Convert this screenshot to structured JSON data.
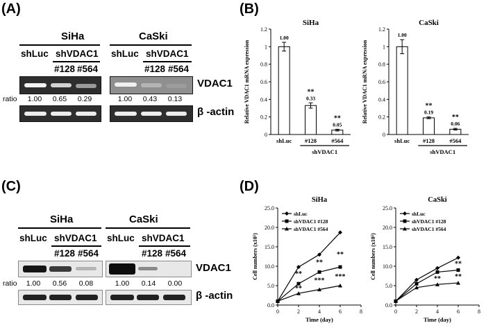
{
  "panels": {
    "a": {
      "label": "(A)",
      "cells": [
        "SiHa",
        "CaSki"
      ],
      "lanes": {
        "control": "shLuc",
        "group": "shVDAC1",
        "clones": [
          "#128",
          "#564"
        ]
      },
      "proteins": [
        "VDAC1",
        "β -actin"
      ],
      "ratio_label": "ratio",
      "ratios": [
        [
          "1.00",
          "0.65",
          "0.29"
        ],
        [
          "1.00",
          "0.43",
          "0.13"
        ]
      ]
    },
    "b": {
      "label": "(B)",
      "charts": [
        {
          "title": "SiHa",
          "ylabel": "Relative VDAC1 mRNA expression",
          "sig": [
            "",
            "**",
            "**"
          ],
          "values": [
            "1.00",
            "0.33",
            "0.05"
          ]
        },
        {
          "title": "CaSki",
          "ylabel": "Relative VDAC1 mRNA expression",
          "sig": [
            "",
            "**",
            "**"
          ],
          "values": [
            "1.00",
            "0.19",
            "0.06"
          ]
        }
      ],
      "xticks": [
        "shLuc",
        "#128",
        "#564"
      ],
      "group": "shVDAC1"
    },
    "c": {
      "label": "(C)",
      "cells": [
        "SiHa",
        "CaSki"
      ],
      "lanes": {
        "control": "shLuc",
        "group": "shVDAC1",
        "clones": [
          "#128",
          "#564"
        ]
      },
      "proteins": [
        "VDAC1",
        "β -actin"
      ],
      "ratio_label": "ratio",
      "ratios": [
        [
          "1.00",
          "0.56",
          "0.08"
        ],
        [
          "1.00",
          "0.14",
          "0.00"
        ]
      ]
    },
    "d": {
      "label": "(D)",
      "charts": [
        {
          "title": "SiHa",
          "sig": {
            "day2": [
              "**",
              "**"
            ],
            "day4": [
              "**",
              "***"
            ],
            "day6": [
              "**",
              "***"
            ]
          }
        },
        {
          "title": "CaSki",
          "sig": {
            "day4": [
              "**"
            ],
            "day6": [
              "**",
              "**"
            ]
          }
        }
      ],
      "ylabel": "Cell numbers (x10⁵)",
      "xlabel": "Time (day)",
      "legend": [
        "shLuc",
        "shVDAC1 #128",
        "shVDAC1 #564"
      ]
    }
  },
  "chart_data": [
    {
      "type": "bar",
      "title": "SiHa",
      "ylabel": "Relative VDAC1 mRNA expression",
      "xlabel": "",
      "categories": [
        "shLuc",
        "#128",
        "#564"
      ],
      "values": [
        1.0,
        0.33,
        0.05
      ],
      "errors": [
        0.05,
        0.03,
        0.01
      ],
      "ylim": [
        0,
        1.2
      ],
      "yticks": [
        0,
        0.2,
        0.4,
        0.6,
        0.8,
        1,
        1.2
      ],
      "group_label": "shVDAC1",
      "grid": false
    },
    {
      "type": "bar",
      "title": "CaSki",
      "ylabel": "Relative VDAC1 mRNA expression",
      "xlabel": "",
      "categories": [
        "shLuc",
        "#128",
        "#564"
      ],
      "values": [
        1.0,
        0.19,
        0.06
      ],
      "errors": [
        0.08,
        0.01,
        0.01
      ],
      "ylim": [
        0,
        1.2
      ],
      "yticks": [
        0,
        0.2,
        0.4,
        0.6,
        0.8,
        1,
        1.2
      ],
      "group_label": "shVDAC1",
      "grid": false
    },
    {
      "type": "line",
      "title": "SiHa",
      "xlabel": "Time (day)",
      "ylabel": "Cell numbers (x10⁵)",
      "x": [
        0,
        2,
        4,
        6
      ],
      "xlim": [
        0,
        8
      ],
      "ylim": [
        0,
        25
      ],
      "xticks": [
        0,
        2,
        4,
        6,
        8
      ],
      "yticks": [
        0,
        5,
        10,
        15,
        20,
        25
      ],
      "legend_position": "top-left",
      "grid": false,
      "series": [
        {
          "name": "shLuc",
          "values": [
            1.0,
            9.8,
            13.0,
            18.7
          ],
          "marker": "diamond"
        },
        {
          "name": "shVDAC1 #128",
          "values": [
            1.0,
            5.5,
            8.5,
            9.8
          ],
          "marker": "square"
        },
        {
          "name": "shVDAC1 #564",
          "values": [
            1.0,
            3.0,
            4.0,
            5.0
          ],
          "marker": "triangle"
        }
      ]
    },
    {
      "type": "line",
      "title": "CaSki",
      "xlabel": "Time (day)",
      "ylabel": "Cell numbers (x10⁵)",
      "x": [
        0,
        2,
        4,
        6
      ],
      "xlim": [
        0,
        8
      ],
      "ylim": [
        0,
        25
      ],
      "xticks": [
        0,
        2,
        4,
        6,
        8
      ],
      "yticks": [
        0,
        5,
        10,
        15,
        20,
        25
      ],
      "legend_position": "top-left",
      "grid": false,
      "series": [
        {
          "name": "shLuc",
          "values": [
            1.0,
            6.5,
            9.5,
            12.2
          ],
          "marker": "diamond"
        },
        {
          "name": "shVDAC1 #128",
          "values": [
            1.0,
            5.5,
            8.5,
            9.0
          ],
          "marker": "square"
        },
        {
          "name": "shVDAC1 #564",
          "values": [
            1.0,
            4.5,
            5.3,
            5.7
          ],
          "marker": "triangle"
        }
      ]
    }
  ]
}
